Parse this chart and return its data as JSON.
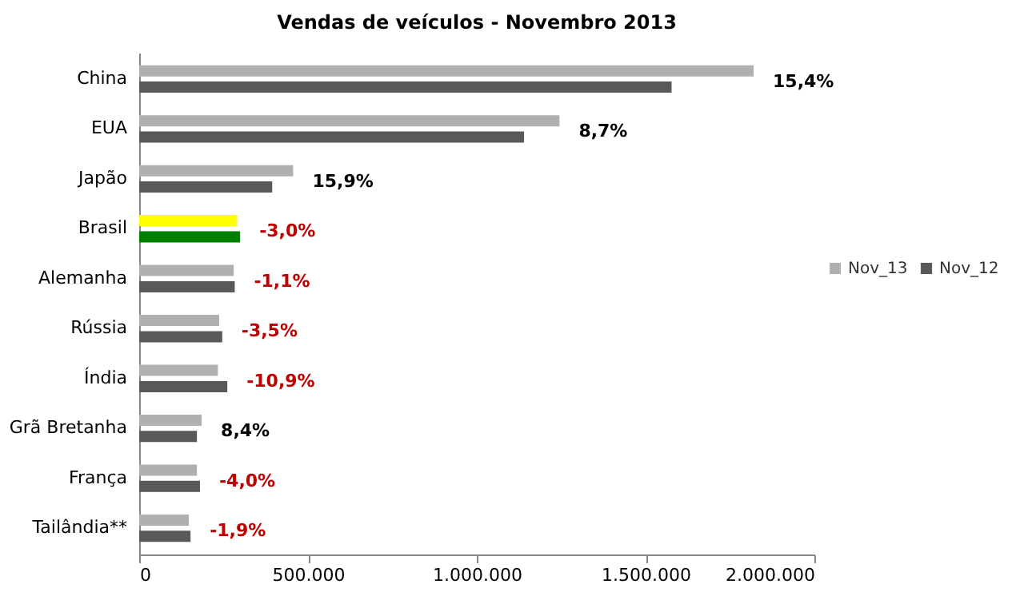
{
  "chart_data": {
    "type": "bar",
    "orientation": "horizontal",
    "title": "Vendas de veículos -  Novembro 2013",
    "categories": [
      "China",
      "EUA",
      "Japão",
      "Brasil",
      "Alemanha",
      "Rússia",
      "Índia",
      "Grã Bretanha",
      "França",
      "Tailândia**"
    ],
    "series": [
      {
        "name": "Nov_13",
        "color": "#b0b0b0",
        "colors": [
          "#b0b0b0",
          "#b0b0b0",
          "#b0b0b0",
          "#ffff00",
          "#b0b0b0",
          "#b0b0b0",
          "#b0b0b0",
          "#b0b0b0",
          "#b0b0b0",
          "#b0b0b0"
        ],
        "values": [
          1820000,
          1245000,
          456000,
          290000,
          280000,
          237000,
          233000,
          185000,
          171000,
          147000
        ]
      },
      {
        "name": "Nov_12",
        "color": "#595959",
        "colors": [
          "#595959",
          "#595959",
          "#595959",
          "#008000",
          "#595959",
          "#595959",
          "#595959",
          "#595959",
          "#595959",
          "#595959"
        ],
        "values": [
          1577000,
          1140000,
          394000,
          299000,
          283000,
          246000,
          261000,
          171000,
          180000,
          152000
        ]
      }
    ],
    "xlim": [
      0,
      2000000
    ],
    "xticks": [
      {
        "value": 0,
        "label": "0"
      },
      {
        "value": 500000,
        "label": "500.000"
      },
      {
        "value": 1000000,
        "label": "1.000.000"
      },
      {
        "value": 1500000,
        "label": "1.500.000"
      },
      {
        "value": 2000000,
        "label": "2.000.000"
      }
    ],
    "annotations": [
      {
        "text": "15,4%",
        "x": 1820000,
        "y": "China"
      },
      {
        "text": "8,7%",
        "x": 1245000,
        "y": "EUA"
      },
      {
        "text": "15,9%",
        "x": 456000,
        "y": "Japão"
      },
      {
        "text": "-3,0%",
        "x": 299000,
        "y": "Brasil"
      },
      {
        "text": "-1,1%",
        "x": 283000,
        "y": "Alemanha"
      },
      {
        "text": "-3,5%",
        "x": 246000,
        "y": "Rússia"
      },
      {
        "text": "-10,9%",
        "x": 261000,
        "y": "Índia"
      },
      {
        "text": "8,4%",
        "x": 185000,
        "y": "Grã Bretanha"
      },
      {
        "text": "-4,0%",
        "x": 180000,
        "y": "França"
      },
      {
        "text": "-1,9%",
        "x": 152000,
        "y": "Tailândia**"
      }
    ],
    "grid": false,
    "legend": "right"
  }
}
